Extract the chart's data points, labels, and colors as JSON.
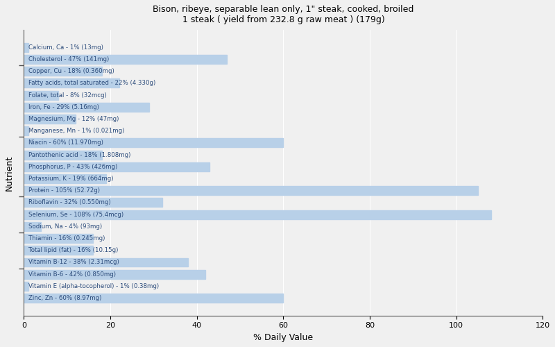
{
  "title_line1": "Bison, ribeye, separable lean only, 1\" steak, cooked, broiled",
  "title_line2": "1 steak ( yield from 232.8 g raw meat ) (179g)",
  "xlabel": "% Daily Value",
  "ylabel": "Nutrient",
  "xlim": [
    0,
    120
  ],
  "xticks": [
    0,
    20,
    40,
    60,
    80,
    100,
    120
  ],
  "background_color": "#f0f0f0",
  "bar_color": "#b8d0e8",
  "text_color": "#2a4a7a",
  "bar_height": 0.75,
  "figsize": [
    8.0,
    5.0
  ],
  "dpi": 100,
  "nutrients": [
    {
      "label": "Calcium, Ca - 1% (13mg)",
      "value": 1
    },
    {
      "label": "Cholesterol - 47% (141mg)",
      "value": 47
    },
    {
      "label": "Copper, Cu - 18% (0.360mg)",
      "value": 18
    },
    {
      "label": "Fatty acids, total saturated - 22% (4.330g)",
      "value": 22
    },
    {
      "label": "Folate, total - 8% (32mcg)",
      "value": 8
    },
    {
      "label": "Iron, Fe - 29% (5.16mg)",
      "value": 29
    },
    {
      "label": "Magnesium, Mg - 12% (47mg)",
      "value": 12
    },
    {
      "label": "Manganese, Mn - 1% (0.021mg)",
      "value": 1
    },
    {
      "label": "Niacin - 60% (11.970mg)",
      "value": 60
    },
    {
      "label": "Pantothenic acid - 18% (1.808mg)",
      "value": 18
    },
    {
      "label": "Phosphorus, P - 43% (426mg)",
      "value": 43
    },
    {
      "label": "Potassium, K - 19% (664mg)",
      "value": 19
    },
    {
      "label": "Protein - 105% (52.72g)",
      "value": 105
    },
    {
      "label": "Riboflavin - 32% (0.550mg)",
      "value": 32
    },
    {
      "label": "Selenium, Se - 108% (75.4mcg)",
      "value": 108
    },
    {
      "label": "Sodium, Na - 4% (93mg)",
      "value": 4
    },
    {
      "label": "Thiamin - 16% (0.245mg)",
      "value": 16
    },
    {
      "label": "Total lipid (fat) - 16% (10.15g)",
      "value": 16
    },
    {
      "label": "Vitamin B-12 - 38% (2.31mcg)",
      "value": 38
    },
    {
      "label": "Vitamin B-6 - 42% (0.850mg)",
      "value": 42
    },
    {
      "label": "Vitamin E (alpha-tocopherol) - 1% (0.38mg)",
      "value": 1
    },
    {
      "label": "Zinc, Zn - 60% (8.97mg)",
      "value": 60
    }
  ]
}
